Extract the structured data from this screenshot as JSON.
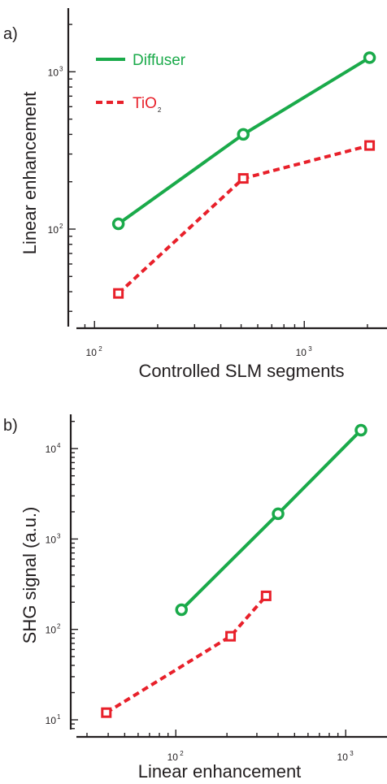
{
  "colors": {
    "green": "#1aaa4a",
    "red": "#e8202a",
    "axis": "#231f20"
  },
  "chart_data": [
    {
      "panel": "a)",
      "type": "line",
      "xlabel": "Controlled SLM segments",
      "ylabel": "Linear enhancement",
      "xscale": "log",
      "yscale": "log",
      "xlim": [
        82,
        2350
      ],
      "ylim": [
        24,
        2600
      ],
      "xticks": [
        {
          "base": "10",
          "exp": "2",
          "value": 100
        },
        {
          "base": "10",
          "exp": "3",
          "value": 1000
        }
      ],
      "yticks": [
        {
          "base": "10",
          "exp": "2",
          "value": 100
        },
        {
          "base": "10",
          "exp": "3",
          "value": 1000
        }
      ],
      "legend": {
        "position": "top-left",
        "entries": [
          {
            "label": "Diffuser",
            "sub": "",
            "series": 0
          },
          {
            "label": "TiO",
            "sub": "2",
            "series": 1
          }
        ]
      },
      "series": [
        {
          "name": "Diffuser",
          "color": "#1aaa4a",
          "marker": "circle",
          "dash": "solid",
          "x": [
            130,
            512,
            2048
          ],
          "y": [
            108,
            400,
            1230
          ]
        },
        {
          "name": "TiO2",
          "color": "#e8202a",
          "marker": "square",
          "dash": "dashed",
          "x": [
            130,
            512,
            2048
          ],
          "y": [
            39,
            210,
            340
          ]
        }
      ]
    },
    {
      "panel": "b)",
      "type": "line",
      "xlabel": "Linear enhancement",
      "ylabel": "SHG signal (a.u.)",
      "xscale": "log",
      "yscale": "log",
      "xlim": [
        26,
        1750
      ],
      "ylim": [
        7.8,
        26000
      ],
      "xticks": [
        {
          "base": "10",
          "exp": "2",
          "value": 100
        },
        {
          "base": "10",
          "exp": "3",
          "value": 1000
        }
      ],
      "yticks": [
        {
          "base": "10",
          "exp": "1",
          "value": 10
        },
        {
          "base": "10",
          "exp": "2",
          "value": 100
        },
        {
          "base": "10",
          "exp": "3",
          "value": 1000
        },
        {
          "base": "10",
          "exp": "4",
          "value": 10000
        }
      ],
      "series": [
        {
          "name": "Diffuser",
          "color": "#1aaa4a",
          "marker": "circle",
          "dash": "solid",
          "x": [
            108,
            400,
            1230
          ],
          "y": [
            165,
            1900,
            16000
          ]
        },
        {
          "name": "TiO2",
          "color": "#e8202a",
          "marker": "square",
          "dash": "dashed",
          "x": [
            39,
            210,
            340
          ],
          "y": [
            12,
            84,
            235
          ]
        }
      ]
    }
  ]
}
